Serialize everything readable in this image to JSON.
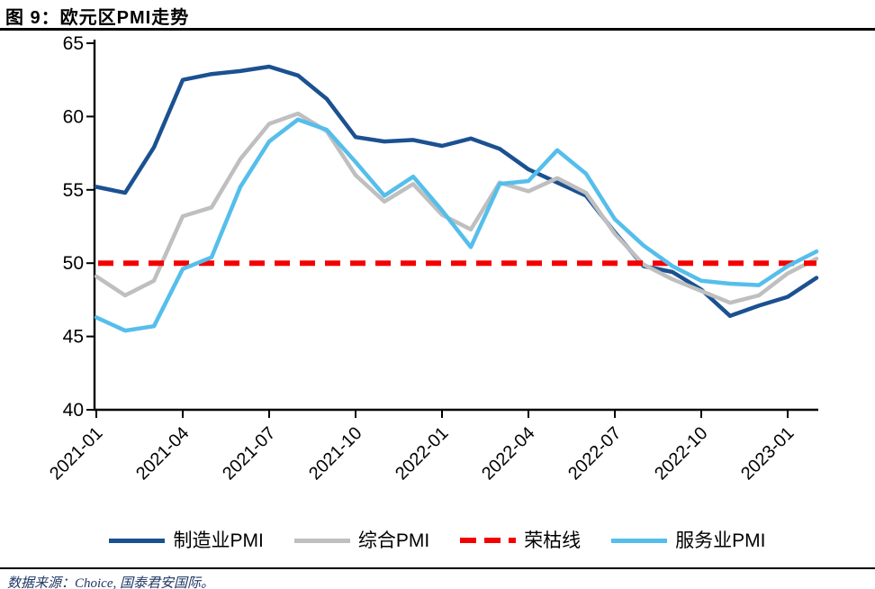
{
  "header": {
    "title": "图 9：欧元区PMI走势"
  },
  "chart_data": {
    "type": "line",
    "title": "欧元区PMI走势",
    "xlabel": "",
    "ylabel": "",
    "ylim": [
      40,
      65
    ],
    "y_ticks": [
      40,
      45,
      50,
      55,
      60,
      65
    ],
    "grid": false,
    "legend_position": "bottom",
    "x_labels": [
      "2021-01",
      "2021-02",
      "2021-03",
      "2021-04",
      "2021-05",
      "2021-06",
      "2021-07",
      "2021-08",
      "2021-09",
      "2021-10",
      "2021-11",
      "2021-12",
      "2022-01",
      "2022-02",
      "2022-03",
      "2022-04",
      "2022-05",
      "2022-06",
      "2022-07",
      "2022-08",
      "2022-09",
      "2022-10",
      "2022-11",
      "2022-12",
      "2023-01",
      "2023-02"
    ],
    "x_ticks_shown": [
      "2021-01",
      "2021-04",
      "2021-07",
      "2021-10",
      "2022-01",
      "2022-04",
      "2022-07",
      "2022-10",
      "2023-01"
    ],
    "series": [
      {
        "name": "制造业PMI",
        "color": "#1B5191",
        "values": [
          55.2,
          54.8,
          57.9,
          62.5,
          62.9,
          63.1,
          63.4,
          62.8,
          61.2,
          58.6,
          58.3,
          58.4,
          58.0,
          58.5,
          57.8,
          56.4,
          55.5,
          54.6,
          52.1,
          49.8,
          49.4,
          48.2,
          46.4,
          47.1,
          47.7,
          49.0
        ]
      },
      {
        "name": "综合PMI",
        "color": "#BFBFBF",
        "values": [
          49.1,
          47.8,
          48.8,
          53.2,
          53.8,
          57.1,
          59.5,
          60.2,
          59.0,
          56.0,
          54.2,
          55.4,
          53.3,
          52.3,
          55.5,
          54.9,
          55.8,
          54.8,
          52.0,
          49.9,
          48.9,
          48.1,
          47.3,
          47.8,
          49.3,
          50.3
        ]
      },
      {
        "name": "服务业PMI",
        "color": "#55BEEB",
        "values": [
          46.3,
          45.4,
          45.7,
          49.6,
          50.4,
          55.2,
          58.3,
          59.8,
          59.1,
          56.9,
          54.6,
          55.9,
          53.6,
          51.1,
          55.4,
          55.6,
          57.7,
          56.1,
          53.0,
          51.2,
          49.8,
          48.8,
          48.6,
          48.5,
          49.8,
          50.8
        ]
      }
    ],
    "reference_line": {
      "name": "荣枯线",
      "value": 50,
      "color": "#F50000",
      "style": "dashed"
    }
  },
  "legend": {
    "items": [
      {
        "label": "制造业PMI",
        "color": "#1B5191",
        "style": "solid"
      },
      {
        "label": "综合PMI",
        "color": "#BFBFBF",
        "style": "solid"
      },
      {
        "label": "荣枯线",
        "color": "#F50000",
        "style": "dashed"
      },
      {
        "label": "服务业PMI",
        "color": "#55BEEB",
        "style": "solid"
      }
    ]
  },
  "footer": {
    "source": "数据来源：Choice, 国泰君安国际。"
  }
}
